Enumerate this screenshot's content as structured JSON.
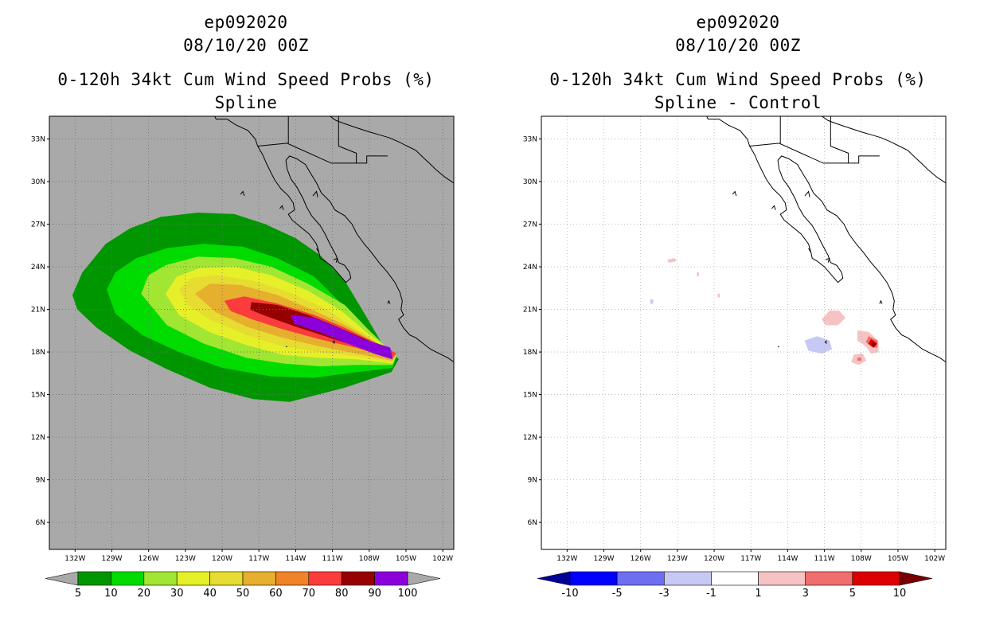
{
  "panels": [
    {
      "storm": "ep092020",
      "date": "08/10/20 00Z",
      "product": "0-120h 34kt Cum Wind Speed Probs (%)",
      "subtitle": "Spline"
    },
    {
      "storm": "ep092020",
      "date": "08/10/20 00Z",
      "product": "0-120h 34kt Cum Wind Speed Probs (%)",
      "subtitle": "Spline - Control"
    }
  ],
  "axes": {
    "lon_ticks": [
      "132W",
      "129W",
      "126W",
      "123W",
      "120W",
      "117W",
      "114W",
      "111W",
      "108W",
      "105W",
      "102W"
    ],
    "lat_ticks": [
      "33N",
      "30N",
      "27N",
      "24N",
      "21N",
      "18N",
      "15N",
      "12N",
      "9N",
      "6N"
    ]
  },
  "colorbars": {
    "left": {
      "labels": [
        "5",
        "10",
        "20",
        "30",
        "40",
        "50",
        "60",
        "70",
        "80",
        "90",
        "100"
      ],
      "colors": [
        "#a9a9a9",
        "#009600",
        "#00dc00",
        "#a0e632",
        "#e6f028",
        "#e6dc32",
        "#e6af2d",
        "#f08228",
        "#fa3c3c",
        "#960000",
        "#8c00dc",
        "#a9a9a9"
      ]
    },
    "right": {
      "labels": [
        "-10",
        "-5",
        "-3",
        "-1",
        "1",
        "3",
        "5",
        "10"
      ],
      "colors": [
        "#000096",
        "#0000ff",
        "#6e6ef0",
        "#c8c8f5",
        "#ffffff",
        "#f5c3c3",
        "#f06e6e",
        "#dc0000",
        "#780000"
      ]
    }
  },
  "chart_data": [
    {
      "type": "contour-map",
      "title": "0-120h 34kt Cum Wind Speed Probs (%)",
      "subtitle": "Spline",
      "lon_range": [
        -134,
        -101
      ],
      "lat_range": [
        4.5,
        34.5
      ],
      "levels": [
        5,
        10,
        20,
        30,
        40,
        50,
        60,
        70,
        80,
        90,
        100
      ],
      "background": "#a9a9a9",
      "contours": [
        {
          "level": 5,
          "color": "#009600",
          "polygon": [
            [
              -132.2,
              22
            ],
            [
              -131.4,
              23.6
            ],
            [
              -129.5,
              25.6
            ],
            [
              -127.5,
              26.7
            ],
            [
              -125,
              27.5
            ],
            [
              -122,
              27.8
            ],
            [
              -119,
              27.7
            ],
            [
              -116.5,
              27
            ],
            [
              -114,
              26
            ],
            [
              -112,
              24.8
            ],
            [
              -110,
              23
            ],
            [
              -108.6,
              21
            ],
            [
              -106.9,
              18.5
            ],
            [
              -105.6,
              17.5
            ],
            [
              -106.2,
              16.6
            ],
            [
              -110,
              15.5
            ],
            [
              -114.5,
              14.5
            ],
            [
              -117.5,
              14.7
            ],
            [
              -121,
              15.5
            ],
            [
              -124.5,
              16.8
            ],
            [
              -127.5,
              18.1
            ],
            [
              -130.2,
              19.7
            ],
            [
              -131.8,
              21
            ]
          ]
        },
        {
          "level": 10,
          "color": "#00dc00",
          "polygon": [
            [
              -129.4,
              22.4
            ],
            [
              -128.7,
              23.6
            ],
            [
              -127,
              24.6
            ],
            [
              -124.5,
              25.3
            ],
            [
              -121.5,
              25.6
            ],
            [
              -118.3,
              25.4
            ],
            [
              -115.5,
              24.6
            ],
            [
              -112.5,
              23.3
            ],
            [
              -110.5,
              21.6
            ],
            [
              -108.4,
              19.8
            ],
            [
              -105.8,
              17.7
            ],
            [
              -106.1,
              16.9
            ],
            [
              -109,
              16.6
            ],
            [
              -112.5,
              16.2
            ],
            [
              -116,
              16.3
            ],
            [
              -120,
              16.9
            ],
            [
              -123.5,
              18
            ],
            [
              -126.5,
              19.2
            ],
            [
              -128.7,
              20.7
            ]
          ]
        },
        {
          "level": 20,
          "color": "#a0e632",
          "polygon": [
            [
              -126.6,
              22.1
            ],
            [
              -126,
              23.4
            ],
            [
              -124.6,
              24.1
            ],
            [
              -122,
              24.7
            ],
            [
              -119,
              24.6
            ],
            [
              -116,
              24
            ],
            [
              -113,
              22.8
            ],
            [
              -110,
              21.3
            ],
            [
              -108,
              19.5
            ],
            [
              -105.8,
              17.7
            ],
            [
              -106.1,
              17.1
            ],
            [
              -109,
              17.1
            ],
            [
              -112,
              17
            ],
            [
              -115,
              17.2
            ],
            [
              -118,
              17.6
            ],
            [
              -121.5,
              18.6
            ],
            [
              -124.5,
              19.9
            ]
          ]
        },
        {
          "level": 30,
          "color": "#e6f028",
          "polygon": [
            [
              -124.6,
              22.1
            ],
            [
              -123.7,
              23.3
            ],
            [
              -121.8,
              23.9
            ],
            [
              -119,
              24
            ],
            [
              -116,
              23.4
            ],
            [
              -113,
              22.3
            ],
            [
              -110.3,
              20.9
            ],
            [
              -108.1,
              19.3
            ],
            [
              -105.8,
              17.8
            ],
            [
              -106.1,
              17.2
            ],
            [
              -109,
              17.5
            ],
            [
              -112,
              17.6
            ],
            [
              -115,
              17.8
            ],
            [
              -118,
              18.5
            ],
            [
              -121,
              19.4
            ],
            [
              -123.5,
              20.6
            ]
          ]
        },
        {
          "level": 40,
          "color": "#e6dc32",
          "polygon": [
            [
              -123.5,
              22.4
            ],
            [
              -122.5,
              23.2
            ],
            [
              -120.5,
              23.4
            ],
            [
              -117.5,
              23
            ],
            [
              -114.5,
              22.2
            ],
            [
              -111.5,
              21
            ],
            [
              -109.2,
              19.7
            ],
            [
              -105.8,
              17.8
            ],
            [
              -106.1,
              17.3
            ],
            [
              -109,
              17.7
            ],
            [
              -112,
              18
            ],
            [
              -115,
              18.4
            ],
            [
              -118,
              19.2
            ],
            [
              -121,
              20.3
            ],
            [
              -122.8,
              21.3
            ]
          ]
        },
        {
          "level": 50,
          "color": "#e6af2d",
          "polygon": [
            [
              -122.2,
              22.1
            ],
            [
              -121,
              22.8
            ],
            [
              -118.5,
              22.7
            ],
            [
              -115.5,
              22
            ],
            [
              -112.5,
              20.9
            ],
            [
              -110,
              19.9
            ],
            [
              -105.8,
              17.9
            ],
            [
              -106.1,
              17.4
            ],
            [
              -109,
              17.9
            ],
            [
              -112,
              18.4
            ],
            [
              -115,
              19
            ],
            [
              -118,
              19.8
            ],
            [
              -120.5,
              20.8
            ]
          ]
        },
        {
          "level": 60,
          "color": "#e6af2d",
          "polygon": [
            [
              -121.2,
              21.9
            ],
            [
              -119.5,
              22.4
            ],
            [
              -117,
              22
            ],
            [
              -114,
              21.2
            ],
            [
              -111,
              20.2
            ],
            [
              -105.8,
              17.9
            ],
            [
              -106.1,
              17.5
            ],
            [
              -109,
              18.1
            ],
            [
              -112,
              18.7
            ],
            [
              -115,
              19.4
            ],
            [
              -118,
              20.2
            ],
            [
              -120.2,
              21
            ]
          ]
        },
        {
          "level": 70,
          "color": "#fa3c3c",
          "polygon": [
            [
              -119.8,
              21.6
            ],
            [
              -118.2,
              21.9
            ],
            [
              -115.5,
              21.4
            ],
            [
              -112.5,
              20.6
            ],
            [
              -110,
              19.7
            ],
            [
              -105.8,
              17.9
            ],
            [
              -106.1,
              17.6
            ],
            [
              -109,
              18.3
            ],
            [
              -112,
              18.9
            ],
            [
              -115,
              19.6
            ],
            [
              -117.5,
              20.3
            ],
            [
              -119.3,
              20.9
            ]
          ]
        },
        {
          "level": 80,
          "color": "#960000",
          "polygon": [
            [
              -117.6,
              21.5
            ],
            [
              -115.5,
              21.3
            ],
            [
              -113,
              20.6
            ],
            [
              -111,
              19.9
            ],
            [
              -106.2,
              18.1
            ],
            [
              -106.6,
              17.7
            ],
            [
              -109,
              18.4
            ],
            [
              -111.5,
              19.1
            ],
            [
              -114,
              19.8
            ],
            [
              -116.6,
              20.6
            ],
            [
              -117.7,
              21
            ]
          ]
        },
        {
          "level": 90,
          "color": "#8c00dc",
          "polygon": [
            [
              -114.4,
              20.6
            ],
            [
              -112.5,
              20.4
            ],
            [
              -110.5,
              19.7
            ],
            [
              -108.5,
              18.9
            ],
            [
              -106.3,
              18.3
            ],
            [
              -106.1,
              17.5
            ],
            [
              -107.6,
              17.9
            ],
            [
              -109.7,
              18.6
            ],
            [
              -112,
              19.4
            ],
            [
              -114.1,
              20
            ]
          ]
        }
      ]
    },
    {
      "type": "contour-map",
      "title": "0-120h 34kt Cum Wind Speed Probs (%)",
      "subtitle": "Spline - Control",
      "lon_range": [
        -134,
        -101
      ],
      "lat_range": [
        4.5,
        34.5
      ],
      "levels": [
        -10,
        -5,
        -3,
        -1,
        1,
        3,
        5,
        10
      ],
      "background": "#ffffff",
      "contours": [
        {
          "level": 1,
          "color": "#f5c3c3",
          "polygon": [
            [
              -111.2,
              20.3
            ],
            [
              -110.6,
              20.9
            ],
            [
              -109.8,
              20.9
            ],
            [
              -109.3,
              20.4
            ],
            [
              -109.9,
              19.9
            ],
            [
              -110.9,
              19.9
            ]
          ]
        },
        {
          "level": 1,
          "color": "#f5c3c3",
          "polygon": [
            [
              -108.3,
              19.5
            ],
            [
              -107.4,
              19.4
            ],
            [
              -106.6,
              18.8
            ],
            [
              -106.6,
              18
            ],
            [
              -107.2,
              17.9
            ],
            [
              -107.6,
              18.4
            ],
            [
              -108.3,
              18.8
            ]
          ]
        },
        {
          "level": 3,
          "color": "#f06e6e",
          "polygon": [
            [
              -107.4,
              19.1
            ],
            [
              -106.7,
              18.8
            ],
            [
              -106.7,
              18.3
            ],
            [
              -107.2,
              18.4
            ],
            [
              -107.6,
              18.7
            ]
          ]
        },
        {
          "level": 5,
          "color": "#dc0000",
          "polygon": [
            [
              -107.2,
              18.9
            ],
            [
              -106.7,
              18.6
            ],
            [
              -107,
              18.3
            ],
            [
              -107.4,
              18.6
            ]
          ]
        },
        {
          "level": 10,
          "color": "#780000",
          "polygon": [
            [
              -107,
              18.7
            ],
            [
              -106.8,
              18.5
            ],
            [
              -107,
              18.4
            ],
            [
              -107.2,
              18.55
            ]
          ]
        },
        {
          "level": 1,
          "color": "#f5c3c3",
          "polygon": [
            [
              -108.6,
              17.8
            ],
            [
              -107.9,
              17.9
            ],
            [
              -107.6,
              17.4
            ],
            [
              -108.2,
              17.1
            ],
            [
              -108.8,
              17.3
            ]
          ]
        },
        {
          "level": 3,
          "color": "#f06e6e",
          "polygon": [
            [
              -108.3,
              17.6
            ],
            [
              -108,
              17.6
            ],
            [
              -108,
              17.4
            ],
            [
              -108.3,
              17.4
            ]
          ]
        },
        {
          "level": 1,
          "color": "#f5c3c3",
          "polygon": [
            [
              -123.8,
              24.5
            ],
            [
              -123.2,
              24.6
            ],
            [
              -123.1,
              24.4
            ],
            [
              -123.7,
              24.3
            ]
          ]
        },
        {
          "level": 1,
          "color": "#f5c3c3",
          "polygon": [
            [
              -121.4,
              23.6
            ],
            [
              -121.25,
              23.6
            ],
            [
              -121.25,
              23.35
            ],
            [
              -121.4,
              23.35
            ]
          ]
        },
        {
          "level": 1,
          "color": "#f5c3c3",
          "polygon": [
            [
              -119.7,
              22.1
            ],
            [
              -119.55,
              22.1
            ],
            [
              -119.55,
              21.85
            ],
            [
              -119.7,
              21.85
            ]
          ]
        },
        {
          "level": -1,
          "color": "#c8c8f5",
          "polygon": [
            [
              -112.6,
              18.8
            ],
            [
              -111.6,
              19.1
            ],
            [
              -110.6,
              18.8
            ],
            [
              -110.4,
              18.2
            ],
            [
              -111.2,
              17.9
            ],
            [
              -112.3,
              18.1
            ]
          ]
        },
        {
          "level": -1,
          "color": "#c8c8f5",
          "polygon": [
            [
              -125.2,
              21.7
            ],
            [
              -125,
              21.7
            ],
            [
              -125,
              21.4
            ],
            [
              -125.2,
              21.4
            ]
          ]
        }
      ]
    }
  ]
}
